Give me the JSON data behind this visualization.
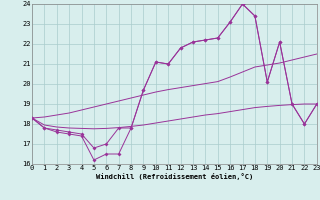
{
  "xlabel": "Windchill (Refroidissement éolien,°C)",
  "bg_color": "#d8eeed",
  "grid_color": "#aacccc",
  "line_color": "#993399",
  "xmin": 0,
  "xmax": 23,
  "ymin": 16,
  "ymax": 24,
  "yticks": [
    16,
    17,
    18,
    19,
    20,
    21,
    22,
    23,
    24
  ],
  "xticks": [
    0,
    1,
    2,
    3,
    4,
    5,
    6,
    7,
    8,
    9,
    10,
    11,
    12,
    13,
    14,
    15,
    16,
    17,
    18,
    19,
    20,
    21,
    22,
    23
  ],
  "jagged1_x": [
    0,
    1,
    2,
    3,
    4,
    5,
    6,
    7,
    8,
    9,
    10,
    11,
    12,
    13,
    14,
    15,
    16,
    17,
    18,
    19,
    20,
    21,
    22,
    23
  ],
  "jagged1_y": [
    18.3,
    17.8,
    17.6,
    17.5,
    17.4,
    16.2,
    16.5,
    16.5,
    17.8,
    19.7,
    21.1,
    21.0,
    21.8,
    22.1,
    22.2,
    22.3,
    23.1,
    24.0,
    23.4,
    20.1,
    22.1,
    19.0,
    18.0,
    19.0
  ],
  "jagged2_x": [
    0,
    1,
    2,
    3,
    4,
    5,
    6,
    7,
    8,
    9,
    10,
    11,
    12,
    13,
    14,
    15,
    16,
    17,
    18,
    19,
    20,
    21,
    22,
    23
  ],
  "jagged2_y": [
    18.3,
    17.8,
    17.7,
    17.6,
    17.5,
    16.8,
    17.0,
    17.8,
    17.8,
    19.7,
    21.1,
    21.0,
    21.8,
    22.1,
    22.2,
    22.3,
    23.1,
    24.0,
    23.4,
    20.1,
    22.1,
    19.0,
    18.0,
    19.0
  ],
  "smooth1_x": [
    0,
    1,
    2,
    3,
    4,
    5,
    6,
    7,
    8,
    9,
    10,
    11,
    12,
    13,
    14,
    15,
    16,
    17,
    18,
    19,
    20,
    21,
    22,
    23
  ],
  "smooth1_y": [
    18.3,
    18.35,
    18.45,
    18.55,
    18.7,
    18.85,
    19.0,
    19.15,
    19.3,
    19.45,
    19.6,
    19.72,
    19.82,
    19.92,
    20.02,
    20.12,
    20.35,
    20.6,
    20.85,
    20.95,
    21.05,
    21.2,
    21.35,
    21.5
  ],
  "smooth2_x": [
    0,
    1,
    2,
    3,
    4,
    5,
    6,
    7,
    8,
    9,
    10,
    11,
    12,
    13,
    14,
    15,
    16,
    17,
    18,
    19,
    20,
    21,
    22,
    23
  ],
  "smooth2_y": [
    18.3,
    17.95,
    17.85,
    17.8,
    17.78,
    17.76,
    17.78,
    17.82,
    17.88,
    17.95,
    18.05,
    18.15,
    18.25,
    18.35,
    18.45,
    18.52,
    18.62,
    18.72,
    18.82,
    18.88,
    18.93,
    18.97,
    19.0,
    19.0
  ]
}
